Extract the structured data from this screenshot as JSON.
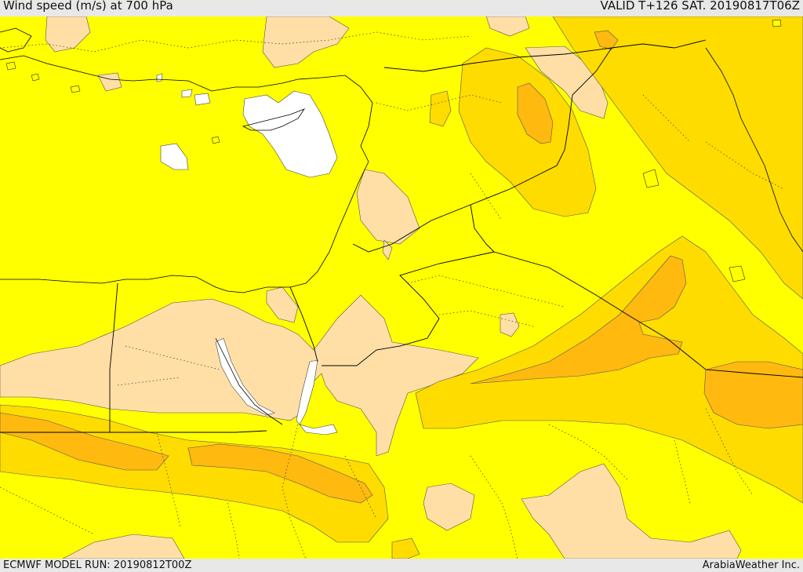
{
  "header": {
    "title": "Wind speed (m/s) at 700 hPa",
    "valid_time": "VALID T+126 SAT. 20190817T06Z"
  },
  "footer": {
    "model_run": "ECMWF MODEL RUN: 20190812T00Z",
    "credit": "ArabiaWeather Inc."
  },
  "map": {
    "region": "Eastern Mediterranean / Middle East",
    "colors": {
      "base": "#ffff00",
      "low": "#ffdfa6",
      "level1": "#ffdc00",
      "level2": "#ffb90f",
      "water_white": "#ffffff",
      "coast": "#000000"
    }
  }
}
